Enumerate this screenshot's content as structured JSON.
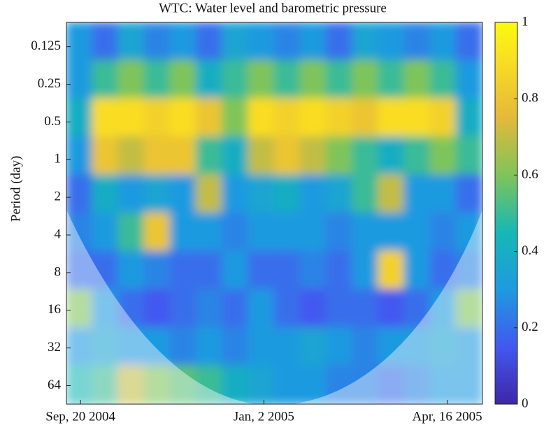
{
  "chart_data": {
    "type": "heatmap",
    "title": "WTC: Water level and barometric pressure",
    "y_label": "Period (day)",
    "log_y": true,
    "ylim": [
      0.08,
      90
    ],
    "yticks": [
      0.125,
      0.25,
      0.5,
      1,
      2,
      4,
      8,
      16,
      32,
      64
    ],
    "xlim": [
      -8,
      228
    ],
    "xticks": [
      {
        "value": 0,
        "label": "Sep, 20 2004"
      },
      {
        "value": 104,
        "label": "Jan, 2 2005"
      },
      {
        "value": 208,
        "label": "Apr, 16 2005"
      }
    ],
    "clim": [
      0,
      1
    ],
    "cticks": [
      0,
      0.2,
      0.4,
      0.6,
      0.8,
      1
    ],
    "z": [
      [
        0.3,
        0.2,
        0.35,
        0.25,
        0.3,
        0.2,
        0.35,
        0.3,
        0.25,
        0.3,
        0.2,
        0.35,
        0.3,
        0.25,
        0.3,
        0.2
      ],
      [
        0.3,
        0.5,
        0.6,
        0.5,
        0.6,
        0.4,
        0.5,
        0.6,
        0.5,
        0.6,
        0.5,
        0.6,
        0.5,
        0.6,
        0.5,
        0.3
      ],
      [
        0.4,
        0.9,
        0.9,
        0.85,
        0.9,
        0.8,
        0.6,
        0.9,
        0.85,
        0.9,
        0.85,
        0.8,
        0.9,
        0.9,
        0.85,
        0.4
      ],
      [
        0.3,
        0.8,
        0.7,
        0.8,
        0.8,
        0.5,
        0.4,
        0.7,
        0.8,
        0.7,
        0.6,
        0.5,
        0.4,
        0.5,
        0.6,
        0.5
      ],
      [
        0.2,
        0.4,
        0.3,
        0.35,
        0.3,
        0.7,
        0.3,
        0.35,
        0.4,
        0.3,
        0.35,
        0.5,
        0.7,
        0.3,
        0.3,
        0.2
      ],
      [
        0.25,
        0.3,
        0.5,
        0.8,
        0.3,
        0.3,
        0.25,
        0.3,
        0.3,
        0.3,
        0.25,
        0.3,
        0.3,
        0.3,
        0.25,
        0.3
      ],
      [
        0.2,
        0.2,
        0.3,
        0.25,
        0.2,
        0.2,
        0.3,
        0.2,
        0.2,
        0.25,
        0.2,
        0.3,
        0.85,
        0.3,
        0.2,
        0.25
      ],
      [
        0.6,
        0.3,
        0.2,
        0.15,
        0.2,
        0.25,
        0.2,
        0.3,
        0.2,
        0.15,
        0.2,
        0.2,
        0.15,
        0.2,
        0.3,
        0.6
      ],
      [
        0.3,
        0.35,
        0.3,
        0.3,
        0.25,
        0.3,
        0.25,
        0.3,
        0.3,
        0.35,
        0.3,
        0.25,
        0.3,
        0.3,
        0.35,
        0.3
      ],
      [
        0.45,
        0.5,
        0.7,
        0.6,
        0.55,
        0.5,
        0.4,
        0.35,
        0.3,
        0.3,
        0.25,
        0.25,
        0.2,
        0.25,
        0.3,
        0.3
      ]
    ]
  }
}
